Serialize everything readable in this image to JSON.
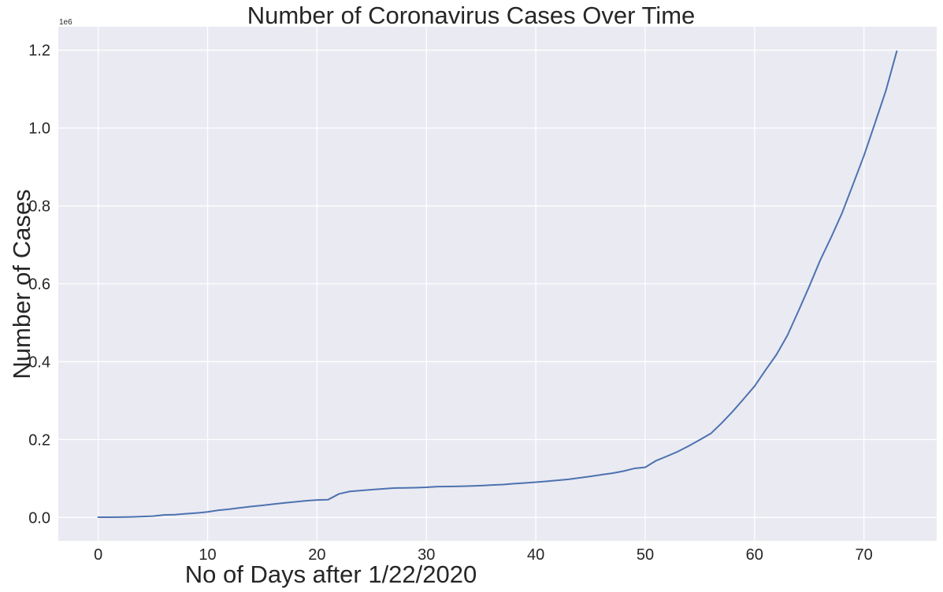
{
  "chart_data": {
    "type": "line",
    "title": "Number of Coronavirus Cases Over Time",
    "xlabel": "No of Days after 1/22/2020",
    "ylabel": "Number of Cases",
    "y_offset_label": "1e6",
    "xlim": [
      -3.65,
      76.65
    ],
    "ylim": [
      -0.06,
      1.26
    ],
    "xticks": [
      0,
      10,
      20,
      30,
      40,
      50,
      60,
      70
    ],
    "xtick_labels": [
      "0",
      "10",
      "20",
      "30",
      "40",
      "50",
      "60",
      "70"
    ],
    "yticks": [
      0.0,
      0.2,
      0.4,
      0.6,
      0.8,
      1.0,
      1.2
    ],
    "ytick_labels": [
      "0.0",
      "0.2",
      "0.4",
      "0.6",
      "0.8",
      "1.0",
      "1.2"
    ],
    "grid": true,
    "background_color": "#eaeaf2",
    "line_color": "#4c72b0",
    "series": [
      {
        "x": [
          0,
          1,
          2,
          3,
          4,
          5,
          6,
          7,
          8,
          9,
          10,
          11,
          12,
          13,
          14,
          15,
          16,
          17,
          18,
          19,
          20,
          21,
          22,
          23,
          24,
          25,
          26,
          27,
          28,
          29,
          30,
          31,
          32,
          33,
          34,
          35,
          36,
          37,
          38,
          39,
          40,
          41,
          42,
          43,
          44,
          45,
          46,
          47,
          48,
          49,
          50,
          51,
          52,
          53,
          54,
          55,
          56,
          57,
          58,
          59,
          60,
          61,
          62,
          63,
          64,
          65,
          66,
          67,
          68,
          69,
          70,
          71,
          72,
          73
        ],
        "y": [
          0.0006,
          0.0007,
          0.001,
          0.0015,
          0.0025,
          0.0035,
          0.0065,
          0.0072,
          0.0095,
          0.0115,
          0.0142,
          0.0185,
          0.0213,
          0.0248,
          0.0281,
          0.031,
          0.0343,
          0.0372,
          0.0401,
          0.0429,
          0.0448,
          0.0455,
          0.0604,
          0.0669,
          0.069,
          0.0713,
          0.0734,
          0.0755,
          0.076,
          0.0765,
          0.0775,
          0.0792,
          0.0796,
          0.0801,
          0.0808,
          0.0818,
          0.0832,
          0.0845,
          0.0867,
          0.0886,
          0.0905,
          0.0929,
          0.0955,
          0.0979,
          0.1017,
          0.1056,
          0.1097,
          0.1136,
          0.1189,
          0.1259,
          0.1287,
          0.1459,
          0.1573,
          0.1694,
          0.1838,
          0.1994,
          0.2156,
          0.2426,
          0.2721,
          0.3043,
          0.3371,
          0.3782,
          0.4181,
          0.4674,
          0.5295,
          0.5933,
          0.6604,
          0.7193,
          0.7818,
          0.8551,
          0.9291,
          1.0118,
          1.0956,
          1.1972
        ]
      }
    ]
  }
}
